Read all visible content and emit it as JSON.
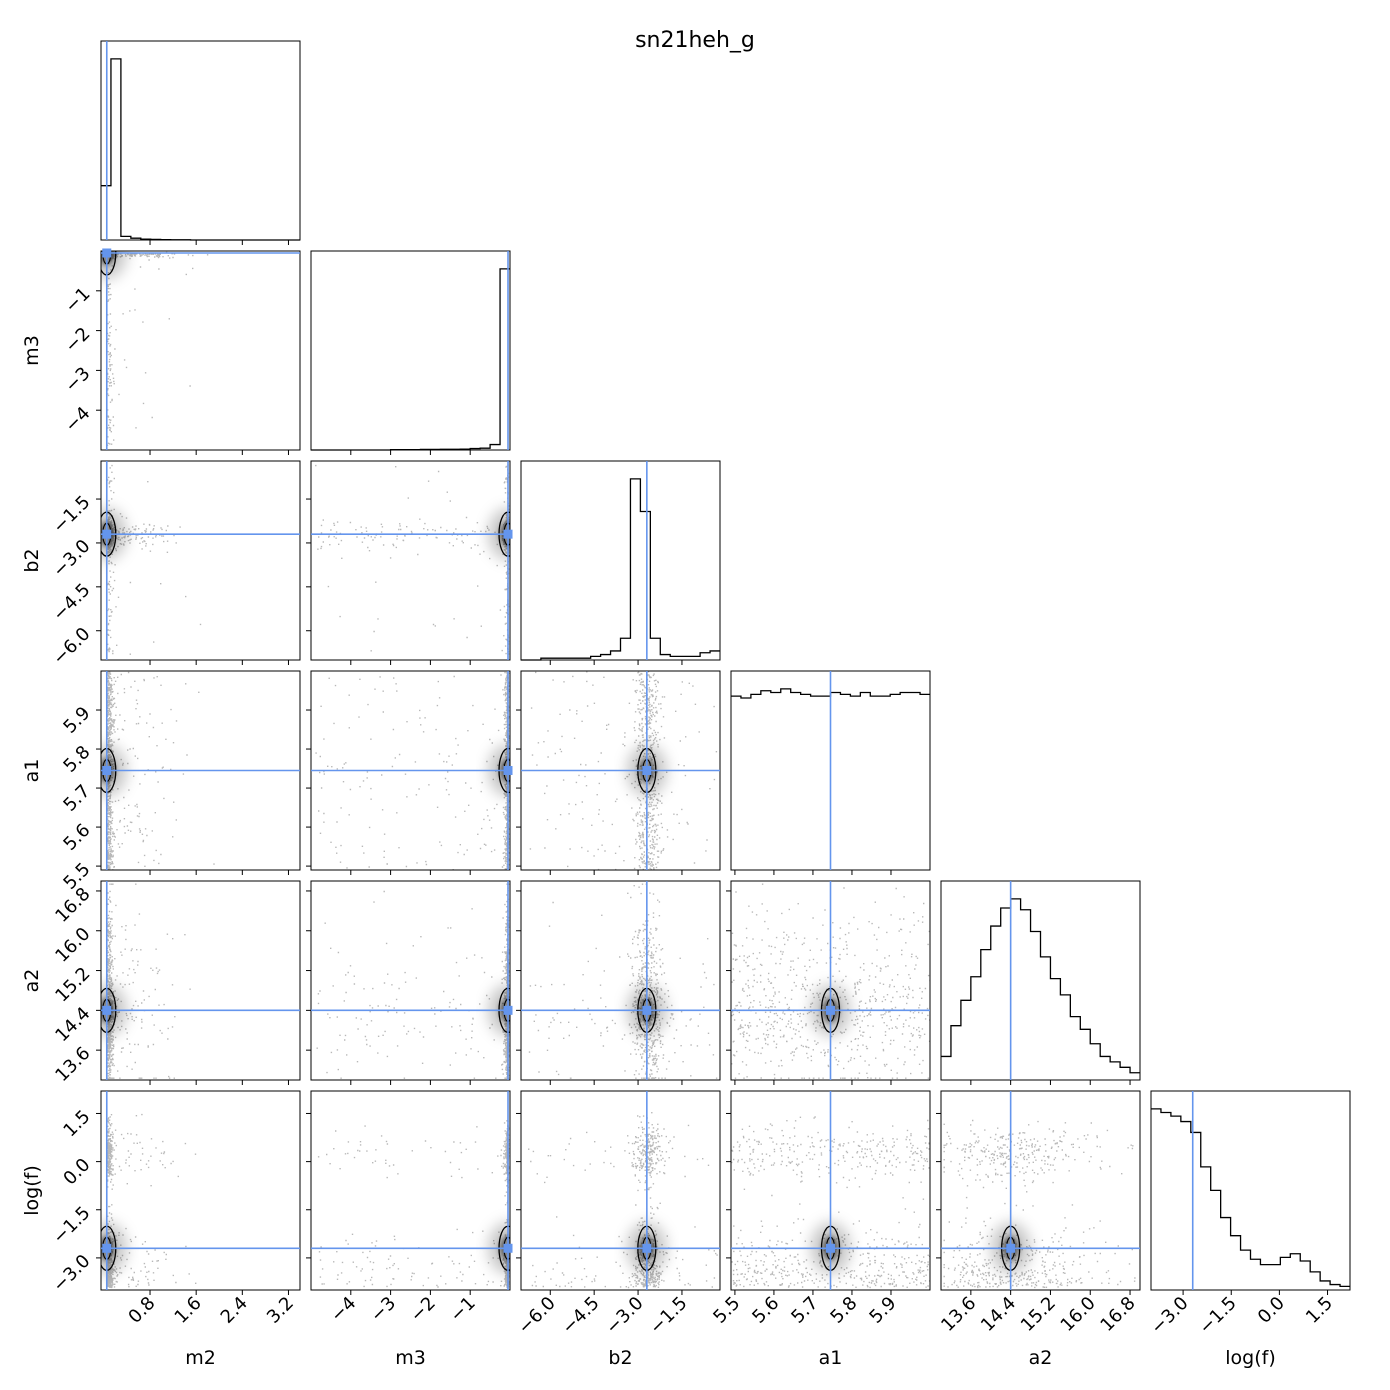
{
  "chart_data": {
    "type": "scatter",
    "title": "sn21heh_g",
    "parameters": [
      "m2",
      "m3",
      "b2",
      "a1",
      "a2",
      "log(f)"
    ],
    "truths": {
      "m2": 0.05,
      "m3": -0.05,
      "b2": -2.7,
      "a1": 5.745,
      "a2": 14.4,
      "log(f)": -2.7
    },
    "truth_color": "#6495ed",
    "axes": {
      "m2": {
        "range": [
          -0.05,
          3.4
        ],
        "ticks": [
          0.8,
          1.6,
          2.4,
          3.2
        ],
        "tick_labels": [
          "0.8",
          "1.6",
          "2.4",
          "3.2"
        ]
      },
      "m3": {
        "range": [
          -5.0,
          0.0
        ],
        "ticks": [
          -4,
          -3,
          -2,
          -1
        ],
        "tick_labels": [
          "−4",
          "−3",
          "−2",
          "−1"
        ]
      },
      "b2": {
        "range": [
          -7.0,
          -0.2
        ],
        "ticks": [
          -6.0,
          -4.5,
          -3.0,
          -1.5
        ],
        "tick_labels": [
          "−6.0",
          "−4.5",
          "−3.0",
          "−1.5"
        ]
      },
      "a1": {
        "range": [
          5.49,
          6.0
        ],
        "ticks": [
          5.5,
          5.6,
          5.7,
          5.8,
          5.9
        ],
        "tick_labels": [
          "5.5",
          "5.6",
          "5.7",
          "5.8",
          "5.9"
        ]
      },
      "a2": {
        "range": [
          13.0,
          17.0
        ],
        "ticks": [
          13.6,
          14.4,
          15.2,
          16.0,
          16.8
        ],
        "tick_labels": [
          "13.6",
          "14.4",
          "15.2",
          "16.0",
          "16.8"
        ]
      },
      "log(f)": {
        "range": [
          -4.0,
          2.2
        ],
        "ticks": [
          -3.0,
          -1.5,
          0.0,
          1.5
        ],
        "tick_labels": [
          "−3.0",
          "−1.5",
          "0.0",
          "1.5"
        ]
      }
    },
    "histograms": {
      "m2": [
        0.3,
        1.0,
        0.02,
        0.01,
        0.005,
        0.003,
        0.002,
        0.001,
        0.001,
        0.0,
        0.0,
        0.0,
        0.0,
        0.0,
        0.0,
        0.0,
        0.0,
        0.0,
        0.0,
        0.0
      ],
      "m3": [
        0.0,
        0.0,
        0.0,
        0.0,
        0.0,
        0.0,
        0.0,
        0.0,
        0.002,
        0.002,
        0.002,
        0.003,
        0.003,
        0.004,
        0.004,
        0.005,
        0.008,
        0.01,
        0.03,
        1.0
      ],
      "b2": [
        0.0,
        0.0,
        0.01,
        0.01,
        0.01,
        0.01,
        0.01,
        0.02,
        0.03,
        0.05,
        0.12,
        1.0,
        0.82,
        0.12,
        0.03,
        0.02,
        0.02,
        0.02,
        0.04,
        0.05
      ],
      "a1": [
        0.96,
        0.95,
        0.97,
        0.99,
        0.98,
        1.0,
        0.98,
        0.97,
        0.96,
        0.96,
        0.98,
        0.97,
        0.96,
        0.98,
        0.96,
        0.96,
        0.97,
        0.98,
        0.98,
        0.97
      ],
      "a2": [
        0.13,
        0.3,
        0.44,
        0.57,
        0.72,
        0.85,
        0.95,
        1.0,
        0.94,
        0.82,
        0.68,
        0.56,
        0.47,
        0.35,
        0.28,
        0.2,
        0.13,
        0.1,
        0.07,
        0.04
      ],
      "log(f)": [
        1.0,
        0.98,
        0.96,
        0.93,
        0.87,
        0.68,
        0.55,
        0.4,
        0.3,
        0.22,
        0.17,
        0.14,
        0.14,
        0.18,
        0.2,
        0.16,
        0.1,
        0.05,
        0.03,
        0.02
      ]
    }
  }
}
